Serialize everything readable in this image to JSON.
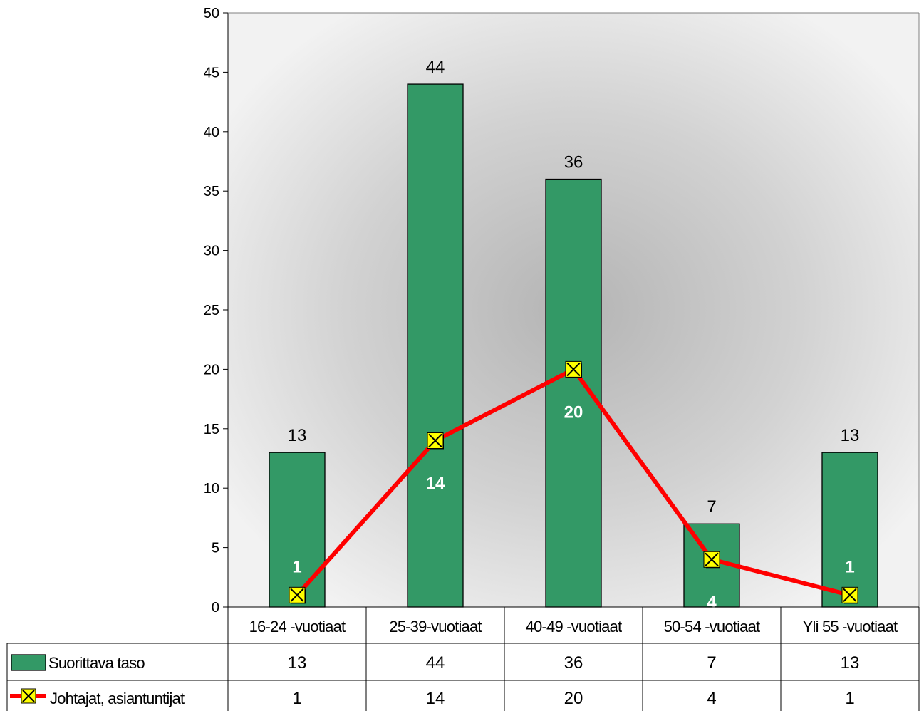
{
  "chart_data": {
    "type": "bar",
    "categories": [
      "16-24 -vuotiaat",
      "25-39-vuotiaat",
      "40-49 -vuotiaat",
      "50-54 -vuotiaat",
      "Yli 55 -vuotiaat"
    ],
    "series": [
      {
        "name": "Suorittava taso",
        "type": "bar",
        "values": [
          13,
          44,
          36,
          7,
          13
        ],
        "color": "#339966"
      },
      {
        "name": "Johtajat, asiantuntijat",
        "type": "line",
        "values": [
          1,
          14,
          20,
          4,
          1
        ],
        "color": "#ff0000",
        "marker_color": "#ffff00"
      }
    ],
    "ylim": [
      0,
      50
    ],
    "yticks": [
      "0",
      "5",
      "10",
      "15",
      "20",
      "25",
      "30",
      "35",
      "40",
      "45",
      "50"
    ],
    "data_table": true,
    "grid": false
  }
}
